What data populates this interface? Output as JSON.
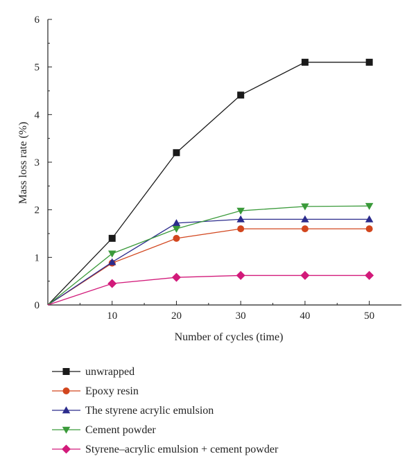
{
  "chart_data": {
    "type": "line",
    "title": "",
    "xlabel": "Number of cycles (time)",
    "ylabel": "Mass loss rate (%)",
    "xlim": [
      0,
      55
    ],
    "ylim": [
      0,
      6
    ],
    "xticks": [
      10,
      20,
      30,
      40,
      50
    ],
    "yticks": [
      0,
      1,
      2,
      3,
      4,
      5,
      6
    ],
    "grid": false,
    "legend_position": "bottom",
    "x": [
      0,
      10,
      20,
      30,
      40,
      50
    ],
    "series": [
      {
        "name": "unwrapped",
        "values": [
          0,
          1.4,
          3.2,
          4.41,
          5.1,
          5.1
        ],
        "color": "#1a1a1a",
        "marker": "square"
      },
      {
        "name": "Epoxy resin",
        "values": [
          0,
          0.88,
          1.4,
          1.6,
          1.6,
          1.6
        ],
        "color": "#d2461e",
        "marker": "circle"
      },
      {
        "name": "The styrene acrylic emulsion",
        "values": [
          0,
          0.9,
          1.72,
          1.8,
          1.8,
          1.8
        ],
        "color": "#2b2b8c",
        "marker": "triangle-up"
      },
      {
        "name": "Cement powder",
        "values": [
          0,
          1.08,
          1.6,
          1.98,
          2.07,
          2.08
        ],
        "color": "#3a9a3a",
        "marker": "triangle-down"
      },
      {
        "name": "Styrene–acrylic emulsion + cement powder",
        "values": [
          0,
          0.45,
          0.58,
          0.62,
          0.62,
          0.62
        ],
        "color": "#d21a7a",
        "marker": "diamond"
      }
    ]
  }
}
